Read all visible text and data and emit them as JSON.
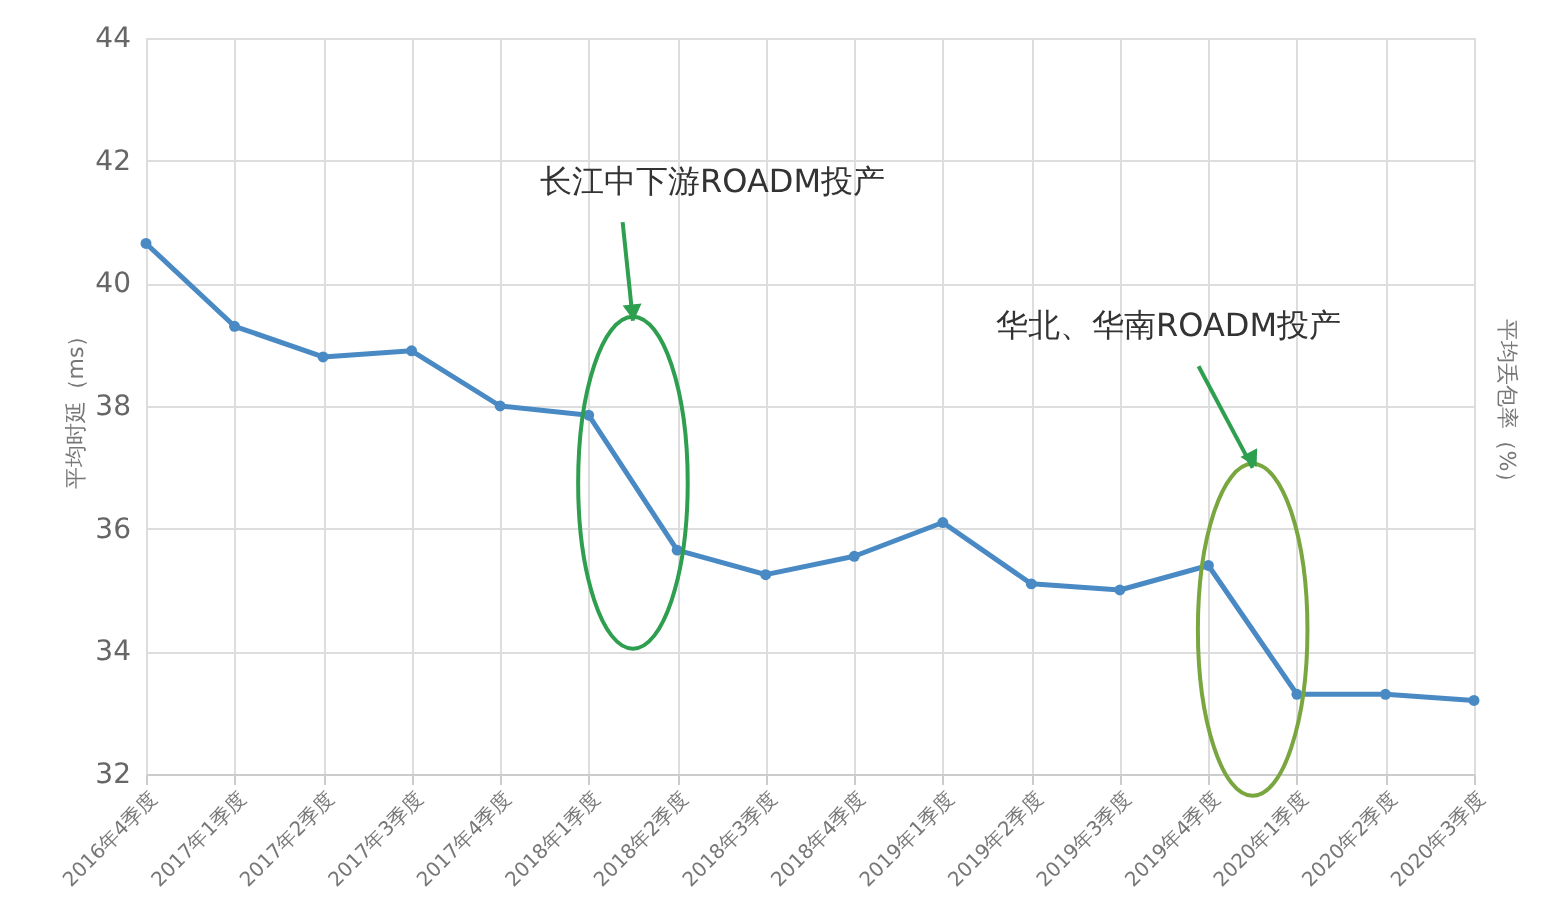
{
  "chart_data": {
    "type": "line",
    "ylabel": "平均时延（ms）",
    "y2label": "平均丢包率（%）",
    "categories": [
      "2016年4季度",
      "2017年1季度",
      "2017年2季度",
      "2017年3季度",
      "2017年4季度",
      "2018年1季度",
      "2018年2季度",
      "2018年3季度",
      "2018年4季度",
      "2019年1季度",
      "2019年2季度",
      "2019年3季度",
      "2019年4季度",
      "2020年1季度",
      "2020年2季度",
      "2020年3季度"
    ],
    "series": [
      {
        "color": "#4a8ac4",
        "values": [
          40.65,
          39.3,
          38.8,
          38.9,
          38.0,
          37.85,
          35.65,
          35.25,
          35.55,
          36.1,
          35.1,
          35.0,
          35.4,
          33.3,
          33.3,
          33.2
        ]
      }
    ],
    "ylim": [
      32,
      44
    ],
    "yticks": [
      32,
      34,
      36,
      38,
      40,
      42,
      44
    ],
    "annotations": [
      "长江中下游ROADM投产",
      "华北、华南ROADM投产"
    ],
    "grid": true,
    "marker": "circle",
    "line_style": "solid"
  }
}
